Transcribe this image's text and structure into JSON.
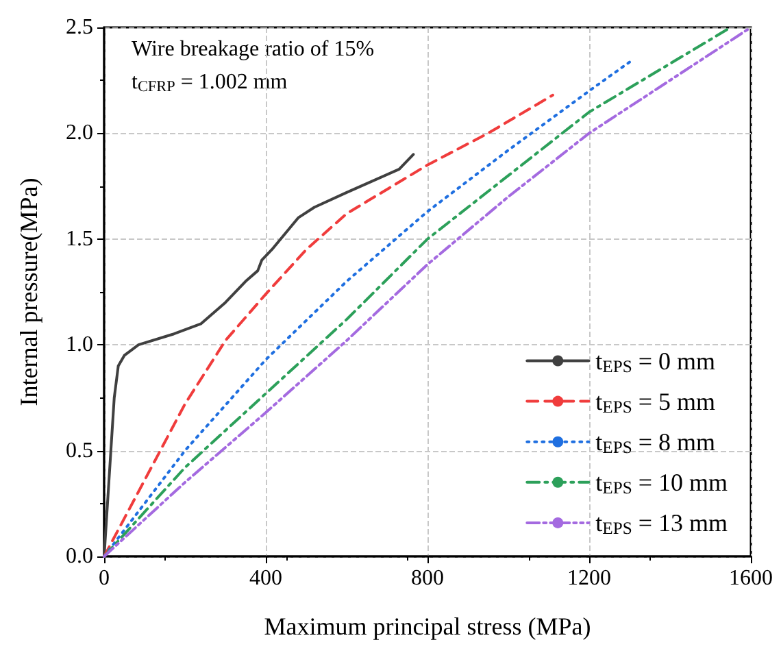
{
  "chart_data": {
    "type": "line",
    "xlabel": "Maximum principal stress (MPa)",
    "ylabel": "Internal pressure(MPa)",
    "annotations": [
      "Wire breakage ratio of 15%",
      "t$_{CFRP}$ = 1.002 mm"
    ],
    "xlim": [
      0,
      1600
    ],
    "xticks": [
      0,
      400,
      800,
      1200,
      1600
    ],
    "ylim": [
      0,
      2.5
    ],
    "yticks": [
      {
        "value": 0,
        "label": "0.0"
      },
      0.5,
      {
        "value": 1,
        "label": "1.0"
      },
      1.5,
      {
        "value": 2,
        "label": "2.0"
      },
      2.5
    ],
    "grid": true,
    "legend": "bottom right",
    "marker": "none",
    "series": [
      {
        "name": "t$_{EPS}$ = 0 mm",
        "color": "#404040",
        "line_style": "solid",
        "x": [
          0,
          10,
          25,
          35,
          50,
          85,
          170,
          240,
          300,
          350,
          380,
          390,
          415,
          480,
          520,
          600,
          730,
          765
        ],
        "values": [
          0,
          0.3,
          0.75,
          0.9,
          0.95,
          1.0,
          1.05,
          1.1,
          1.2,
          1.3,
          1.35,
          1.4,
          1.45,
          1.6,
          1.65,
          1.72,
          1.83,
          1.9
        ]
      },
      {
        "name": "t$_{EPS}$ = 5 mm",
        "color": "#f03c3c",
        "line_style": "dashed",
        "x": [
          0,
          100,
          200,
          300,
          400,
          500,
          600,
          800,
          950,
          1110
        ],
        "values": [
          0,
          0.36,
          0.72,
          1.02,
          1.24,
          1.45,
          1.62,
          1.85,
          2.0,
          2.18
        ]
      },
      {
        "name": "t$_{EPS}$ = 8 mm",
        "color": "#1f6fe0",
        "line_style": "dotted",
        "x": [
          0,
          200,
          400,
          600,
          800,
          1000,
          1200,
          1310
        ],
        "values": [
          0,
          0.5,
          0.93,
          1.3,
          1.63,
          1.92,
          2.2,
          2.35
        ]
      },
      {
        "name": "t$_{EPS}$ = 10 mm",
        "color": "#2ca05a",
        "line_style": "dashdot",
        "x": [
          0,
          200,
          400,
          600,
          800,
          1000,
          1200,
          1550
        ],
        "values": [
          0,
          0.42,
          0.77,
          1.12,
          1.5,
          1.8,
          2.1,
          2.5
        ]
      },
      {
        "name": "t$_{EPS}$ = 13 mm",
        "color": "#a46ae0",
        "line_style": "dashdotdot",
        "x": [
          0,
          200,
          400,
          600,
          800,
          1000,
          1200,
          1600
        ],
        "values": [
          0,
          0.35,
          0.68,
          1.02,
          1.38,
          1.7,
          2.0,
          2.5
        ]
      }
    ]
  }
}
